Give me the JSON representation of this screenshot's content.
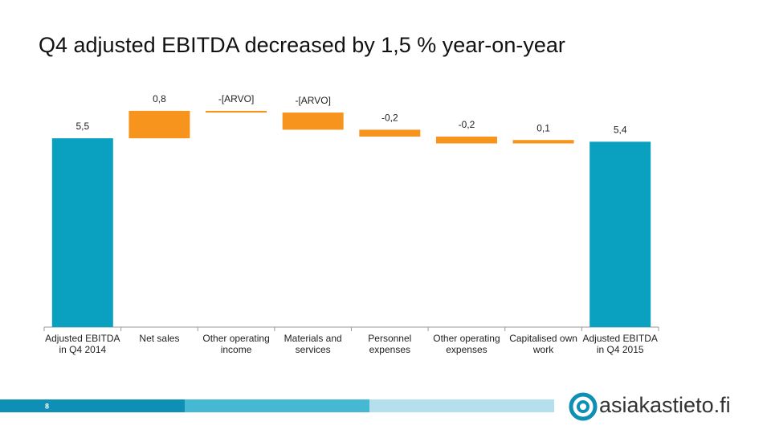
{
  "chart_data": {
    "type": "waterfall",
    "title": "Q4 adjusted EBITDA decreased by 1,5 % year-on-year",
    "categories": [
      "Adjusted EBITDA in Q4 2014",
      "Net sales",
      "Other operating income",
      "Materials and services",
      "Personnel expenses",
      "Other operating expenses",
      "Capitalised own work",
      "Adjusted EBITDA in Q4 2015"
    ],
    "values": [
      5.5,
      0.8,
      -0.05,
      -0.5,
      -0.2,
      -0.2,
      0.1,
      5.4
    ],
    "value_labels": [
      "5,5",
      "0,8",
      "-[ARVO]",
      "-[ARVO]",
      "-0,2",
      "-0,2",
      "0,1",
      "5,4"
    ],
    "total_color": "#0aa0c0",
    "change_color": "#f7941d",
    "ylim": [
      0,
      7
    ]
  },
  "footer": {
    "page_number": "8",
    "logo": "asiakastieto.fi"
  }
}
